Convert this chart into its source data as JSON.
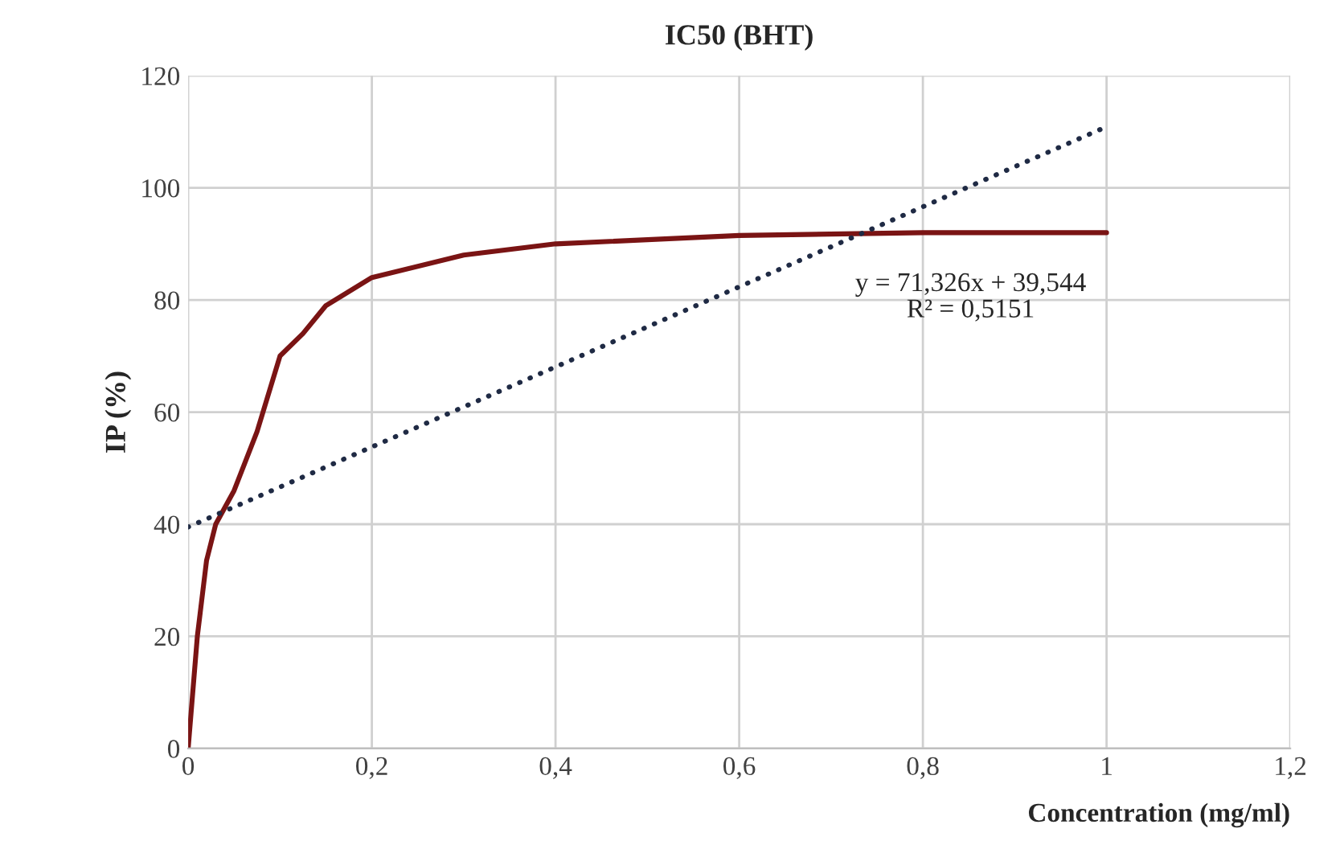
{
  "chart_data": {
    "type": "line",
    "title": "IC50 (BHT)",
    "xlabel": "Concentration (mg/ml)",
    "ylabel": "IP (%)",
    "series": [
      {
        "color": "#7a1414",
        "x": [
          0,
          0.01,
          0.02,
          0.03,
          0.05,
          0.075,
          0.1,
          0.125,
          0.15,
          0.2,
          0.3,
          0.4,
          0.6,
          0.8,
          1
        ],
        "values": [
          0,
          20,
          33.5,
          40,
          46,
          56.5,
          70,
          74,
          79,
          84,
          88,
          90,
          91.5,
          92,
          92
        ],
        "line_style": "solid"
      },
      {
        "color": "#1f2a44",
        "x": [
          0,
          1
        ],
        "values": [
          39.5,
          110.9
        ],
        "line_style": "dotted"
      }
    ],
    "xlim": [
      0,
      1.2
    ],
    "ylim": [
      0,
      120
    ],
    "xticks": [
      0,
      {
        "value": 0.2,
        "label": "0,2"
      },
      {
        "value": 0.4,
        "label": "0,4"
      },
      {
        "value": 0.6,
        "label": "0,6"
      },
      {
        "value": 0.8,
        "label": "0,8"
      },
      1,
      {
        "value": 1.2,
        "label": "1,2"
      }
    ],
    "yticks": [
      0,
      20,
      40,
      60,
      80,
      100,
      120
    ],
    "grid": true,
    "legend": false,
    "marker": "none",
    "annotations": [
      "y = 71,326x + 39,544\nR² = 0,5151"
    ]
  }
}
